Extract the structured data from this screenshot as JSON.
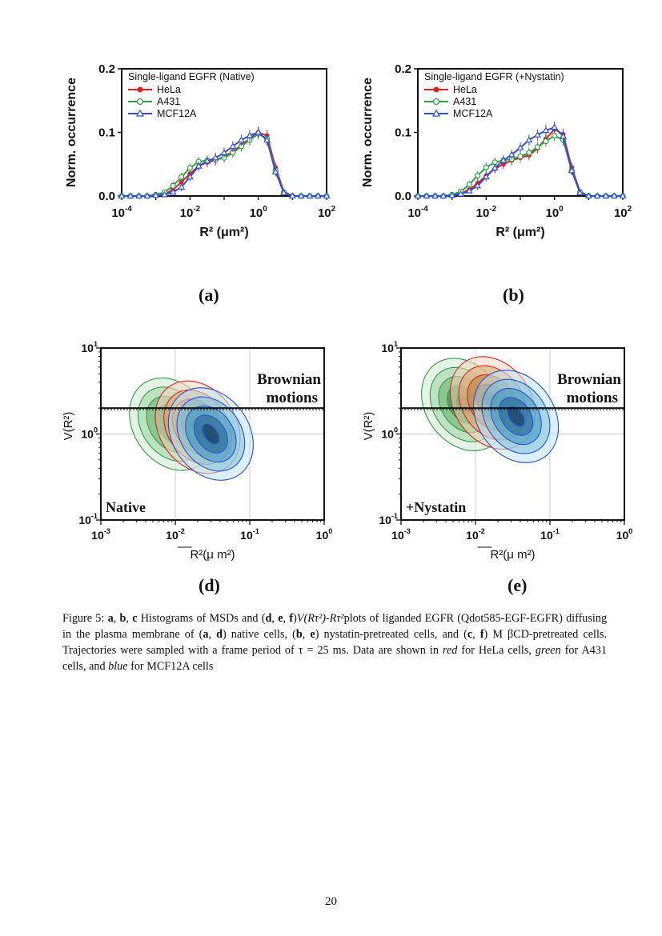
{
  "figure": {
    "panel_labels": [
      "(a)",
      "(b)",
      "(d)",
      "(e)"
    ],
    "caption": {
      "prefix": "Figure 5: ",
      "b1": "a",
      "s1": ", ",
      "b2": "b",
      "s2": ", ",
      "b3": "c",
      "t1": " Histograms of MSDs and (",
      "b4": "d",
      "s3": ", ",
      "b5": "e",
      "s4": ", ",
      "b6": "f",
      "t2": ")",
      "math1": "V(Rτ²)-Rτ²",
      "t3": "plots of liganded EGFR (Qdot585-EGF-EGFR) diffusing in the plasma membrane of (",
      "b7": "a",
      "s5": ", ",
      "b8": "d",
      "t4": ") native cells, (",
      "b9": "b",
      "s6": ", ",
      "b10": "e",
      "t5": ") nystatin-pretreated cells, and (",
      "b11": "c",
      "s7": ", ",
      "b12": "f",
      "t6": ") M βCD-pretreated cells. Trajectories were sampled with a frame period of τ = 25 ms. Data are shown in ",
      "i1": "red",
      "t7": " for HeLa cells, ",
      "i2": "green",
      "t8": " for A431 cells, and ",
      "i3": "blue",
      "t9": " for MCF12A cells"
    }
  },
  "page_number": "20",
  "colors": {
    "hela": "#e02020",
    "a431": "#2ea043",
    "mcf12a": "#2e4fd6"
  },
  "chart_data": [
    {
      "id": "a",
      "type": "line",
      "title": "Single-ligand EGFR (Native)",
      "xlabel": "R² (μm²)",
      "ylabel": "Norm. occurrence",
      "xscale": "log",
      "xlim": [
        0.0001,
        100
      ],
      "ylim": [
        0,
        0.2
      ],
      "xticks": [
        "10-4",
        "10-2",
        "100",
        "102"
      ],
      "yticks": [
        "0.0",
        "0.1",
        "0.2"
      ],
      "legend_position": "top-left",
      "x": [
        0.0001,
        0.00018,
        0.00032,
        0.00056,
        0.001,
        0.0018,
        0.0032,
        0.0056,
        0.01,
        0.018,
        0.032,
        0.056,
        0.1,
        0.18,
        0.32,
        0.56,
        1,
        1.8,
        3.2,
        5.6,
        10,
        18,
        32,
        56,
        100
      ],
      "series": [
        {
          "name": "HeLa",
          "values": [
            0,
            0,
            0,
            0,
            0.001,
            0.003,
            0.01,
            0.022,
            0.035,
            0.047,
            0.053,
            0.056,
            0.062,
            0.07,
            0.08,
            0.09,
            0.1,
            0.095,
            0.045,
            0.007,
            0,
            0,
            0,
            0,
            0
          ]
        },
        {
          "name": "A431",
          "values": [
            0,
            0,
            0,
            0,
            0.002,
            0.006,
            0.016,
            0.03,
            0.044,
            0.054,
            0.056,
            0.057,
            0.06,
            0.068,
            0.078,
            0.088,
            0.098,
            0.09,
            0.04,
            0.006,
            0,
            0,
            0,
            0,
            0
          ]
        },
        {
          "name": "MCF12A",
          "values": [
            0,
            0,
            0,
            0,
            0.001,
            0.002,
            0.006,
            0.014,
            0.03,
            0.047,
            0.055,
            0.06,
            0.068,
            0.078,
            0.088,
            0.095,
            0.1,
            0.088,
            0.038,
            0.005,
            0,
            0,
            0,
            0,
            0
          ]
        }
      ]
    },
    {
      "id": "b",
      "type": "line",
      "title": "Single-ligand EGFR (+Nystatin)",
      "xlabel": "R² (μm²)",
      "ylabel": "Norm. occurrence",
      "xscale": "log",
      "xlim": [
        0.0001,
        100
      ],
      "ylim": [
        0,
        0.2
      ],
      "xticks": [
        "10-4",
        "10-2",
        "100",
        "102"
      ],
      "yticks": [
        "0.0",
        "0.1",
        "0.2"
      ],
      "legend_position": "top-left",
      "x": [
        0.0001,
        0.00018,
        0.00032,
        0.00056,
        0.001,
        0.0018,
        0.0032,
        0.0056,
        0.01,
        0.018,
        0.032,
        0.056,
        0.1,
        0.18,
        0.32,
        0.56,
        1,
        1.8,
        3.2,
        5.6,
        10,
        18,
        32,
        56,
        100
      ],
      "series": [
        {
          "name": "HeLa",
          "values": [
            0,
            0,
            0,
            0,
            0.001,
            0.004,
            0.01,
            0.02,
            0.032,
            0.043,
            0.05,
            0.056,
            0.06,
            0.064,
            0.075,
            0.09,
            0.105,
            0.097,
            0.045,
            0.007,
            0,
            0,
            0,
            0,
            0
          ]
        },
        {
          "name": "A431",
          "values": [
            0,
            0,
            0,
            0,
            0.002,
            0.007,
            0.018,
            0.032,
            0.045,
            0.053,
            0.056,
            0.058,
            0.062,
            0.068,
            0.077,
            0.086,
            0.095,
            0.088,
            0.04,
            0.006,
            0,
            0,
            0,
            0,
            0
          ]
        },
        {
          "name": "MCF12A",
          "values": [
            0,
            0,
            0,
            0,
            0.001,
            0.003,
            0.008,
            0.016,
            0.03,
            0.044,
            0.056,
            0.065,
            0.076,
            0.088,
            0.096,
            0.103,
            0.108,
            0.094,
            0.04,
            0.005,
            0,
            0,
            0,
            0,
            0
          ]
        }
      ]
    },
    {
      "id": "d",
      "type": "contour",
      "xlabel": "R²(μ m²)",
      "ylabel": "V(R²)",
      "xscale": "log",
      "yscale": "log",
      "xlim": [
        0.001,
        1
      ],
      "ylim": [
        0.1,
        10
      ],
      "xticks": [
        "10-3",
        "10-2",
        "10-1",
        "100"
      ],
      "yticks": [
        "10-1",
        "100",
        "101"
      ],
      "reference_line_y": 2,
      "annotation": "Brownian motions",
      "condition_label": "Native",
      "series": [
        {
          "name": "A431",
          "center": [
            0.009,
            1.3
          ]
        },
        {
          "name": "HeLa",
          "center": [
            0.02,
            1.2
          ]
        },
        {
          "name": "MCF12A",
          "center": [
            0.03,
            1.0
          ]
        }
      ]
    },
    {
      "id": "e",
      "type": "contour",
      "xlabel": "R²(μ m²)",
      "ylabel": "V(R²)",
      "xscale": "log",
      "yscale": "log",
      "xlim": [
        0.001,
        1
      ],
      "ylim": [
        0.1,
        10
      ],
      "xticks": [
        "10-3",
        "10-2",
        "10-1",
        "100"
      ],
      "yticks": [
        "10-1",
        "100",
        "101"
      ],
      "reference_line_y": 2,
      "annotation": "Brownian motions",
      "condition_label": "+Nystatin",
      "series": [
        {
          "name": "A431",
          "center": [
            0.007,
            2.2
          ]
        },
        {
          "name": "HeLa",
          "center": [
            0.017,
            2.3
          ]
        },
        {
          "name": "MCF12A",
          "center": [
            0.035,
            1.6
          ]
        }
      ]
    }
  ]
}
